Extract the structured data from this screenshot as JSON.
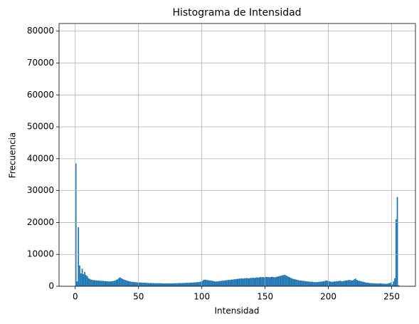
{
  "chart_data": {
    "type": "histogram",
    "title": "Histograma de Intensidad",
    "xlabel": "Intensidad",
    "ylabel": "Frecuencia",
    "bins": [
      0,
      1,
      2,
      3,
      4,
      5,
      6,
      7,
      8,
      9,
      10,
      11,
      12,
      13,
      14,
      15,
      16,
      17,
      18,
      19,
      20,
      21,
      22,
      23,
      24,
      25,
      26,
      27,
      28,
      29,
      30,
      31,
      32,
      33,
      34,
      35,
      36,
      37,
      38,
      39,
      40,
      41,
      42,
      43,
      44,
      45,
      46,
      47,
      48,
      49,
      50,
      51,
      52,
      53,
      54,
      55,
      56,
      57,
      58,
      59,
      60,
      61,
      62,
      63,
      64,
      65,
      66,
      67,
      68,
      69,
      70,
      71,
      72,
      73,
      74,
      75,
      76,
      77,
      78,
      79,
      80,
      81,
      82,
      83,
      84,
      85,
      86,
      87,
      88,
      89,
      90,
      91,
      92,
      93,
      94,
      95,
      96,
      97,
      98,
      99,
      100,
      101,
      102,
      103,
      104,
      105,
      106,
      107,
      108,
      109,
      110,
      111,
      112,
      113,
      114,
      115,
      116,
      117,
      118,
      119,
      120,
      121,
      122,
      123,
      124,
      125,
      126,
      127,
      128,
      129,
      130,
      131,
      132,
      133,
      134,
      135,
      136,
      137,
      138,
      139,
      140,
      141,
      142,
      143,
      144,
      145,
      146,
      147,
      148,
      149,
      150,
      151,
      152,
      153,
      154,
      155,
      156,
      157,
      158,
      159,
      160,
      161,
      162,
      163,
      164,
      165,
      166,
      167,
      168,
      169,
      170,
      171,
      172,
      173,
      174,
      175,
      176,
      177,
      178,
      179,
      180,
      181,
      182,
      183,
      184,
      185,
      186,
      187,
      188,
      189,
      190,
      191,
      192,
      193,
      194,
      195,
      196,
      197,
      198,
      199,
      200,
      201,
      202,
      203,
      204,
      205,
      206,
      207,
      208,
      209,
      210,
      211,
      212,
      213,
      214,
      215,
      216,
      217,
      218,
      219,
      220,
      221,
      222,
      223,
      224,
      225,
      226,
      227,
      228,
      229,
      230,
      231,
      232,
      233,
      234,
      235,
      236,
      237,
      238,
      239,
      240,
      241,
      242,
      243,
      244,
      245,
      246,
      247,
      248,
      249,
      250,
      251,
      252,
      253,
      254,
      255,
      256
    ],
    "values": [
      38500,
      1500,
      18500,
      6500,
      4000,
      5500,
      3800,
      4500,
      3500,
      3200,
      2500,
      2300,
      2100,
      2000,
      1900,
      1900,
      1850,
      1800,
      1800,
      1750,
      1700,
      1700,
      1650,
      1600,
      1600,
      1550,
      1500,
      1500,
      1550,
      1600,
      1700,
      1800,
      2000,
      2200,
      2600,
      2800,
      2500,
      2300,
      2100,
      2000,
      1800,
      1700,
      1600,
      1500,
      1400,
      1400,
      1300,
      1300,
      1250,
      1200,
      1200,
      1150,
      1150,
      1100,
      1100,
      1100,
      1050,
      1050,
      1000,
      1000,
      1000,
      1000,
      950,
      950,
      950,
      950,
      950,
      950,
      900,
      900,
      900,
      900,
      900,
      900,
      900,
      900,
      900,
      950,
      950,
      950,
      950,
      1000,
      1000,
      1000,
      1000,
      1050,
      1050,
      1050,
      1100,
      1100,
      1100,
      1150,
      1150,
      1200,
      1200,
      1250,
      1300,
      1300,
      1400,
      1500,
      1700,
      2000,
      2100,
      2000,
      1900,
      1900,
      1800,
      1800,
      1700,
      1600,
      1500,
      1500,
      1550,
      1600,
      1650,
      1700,
      1750,
      1800,
      1850,
      1900,
      1950,
      2000,
      2000,
      2100,
      2100,
      2200,
      2200,
      2300,
      2300,
      2400,
      2400,
      2500,
      2400,
      2500,
      2500,
      2600,
      2500,
      2500,
      2600,
      2600,
      2700,
      2600,
      2700,
      2800,
      2700,
      2800,
      2900,
      2800,
      2900,
      2800,
      3000,
      2900,
      2900,
      2800,
      2900,
      3000,
      2900,
      2800,
      2900,
      3000,
      3100,
      3200,
      3300,
      3400,
      3500,
      3600,
      3400,
      3200,
      3000,
      2800,
      2600,
      2400,
      2300,
      2200,
      2100,
      2000,
      1900,
      1800,
      1800,
      1700,
      1700,
      1600,
      1600,
      1500,
      1500,
      1400,
      1400,
      1400,
      1300,
      1300,
      1300,
      1300,
      1400,
      1400,
      1500,
      1500,
      1600,
      1700,
      1800,
      1700,
      1600,
      1500,
      1400,
      1400,
      1500,
      1500,
      1600,
      1600,
      1700,
      1700,
      1600,
      1600,
      1700,
      1800,
      1800,
      1900,
      2000,
      1900,
      1800,
      1900,
      2200,
      2400,
      2000,
      1800,
      1700,
      1600,
      1500,
      1400,
      1300,
      1200,
      1100,
      1100,
      1000,
      1000,
      950,
      950,
      900,
      900,
      850,
      850,
      900,
      900,
      850,
      800,
      800,
      750,
      800,
      900,
      1000,
      1200,
      600,
      1500,
      2500,
      21000,
      28000,
      300
    ],
    "color": "#1f77b4",
    "xlim": [
      -12.8,
      268.8
    ],
    "ylim": [
      0,
      82400
    ],
    "xticks": [
      0,
      50,
      100,
      150,
      200,
      250
    ],
    "yticks": [
      0,
      10000,
      20000,
      30000,
      40000,
      50000,
      60000,
      70000,
      80000
    ],
    "grid": true
  }
}
